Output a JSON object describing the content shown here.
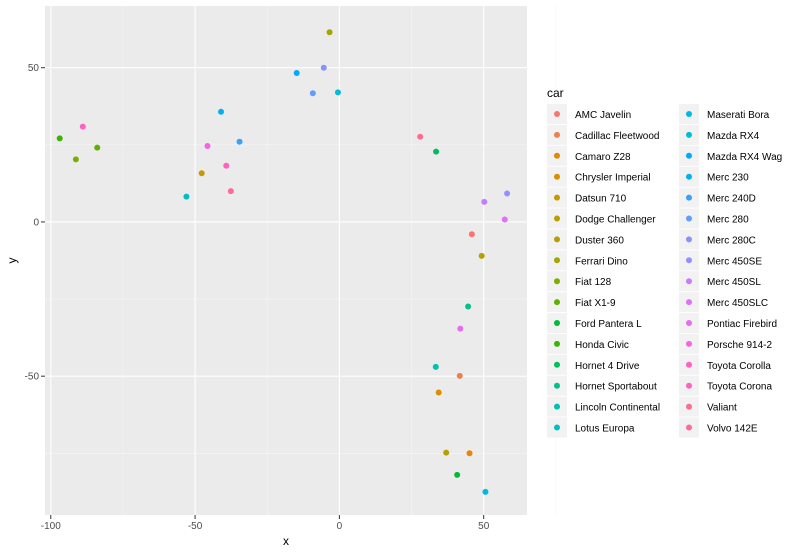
{
  "chart_data": {
    "type": "scatter",
    "title": "",
    "xlabel": "x",
    "ylabel": "y",
    "xlim": [
      -102,
      65
    ],
    "ylim": [
      -95,
      70
    ],
    "xticks": [
      -100,
      -50,
      0,
      50
    ],
    "xtick_labels": [
      "-100",
      "-50",
      "0",
      "50"
    ],
    "yticks": [
      -50,
      0,
      50
    ],
    "ytick_labels": [
      "-50",
      "0",
      "50"
    ],
    "grid": true,
    "legend": {
      "title": "car",
      "placement": "right",
      "columns": 2
    },
    "series": [
      {
        "name": "AMC Javelin",
        "color": "#F8766D",
        "x": 45.9,
        "y": -4.0
      },
      {
        "name": "Cadillac Fleetwood",
        "color": "#F07F4E",
        "x": 41.7,
        "y": -49.9
      },
      {
        "name": "Camaro Z28",
        "color": "#E58700",
        "x": 45.1,
        "y": -75.0
      },
      {
        "name": "Chrysler Imperial",
        "color": "#D89000",
        "x": 34.4,
        "y": -55.3
      },
      {
        "name": "Datsun 710",
        "color": "#C99800",
        "x": -47.7,
        "y": 15.8
      },
      {
        "name": "Dodge Challenger",
        "color": "#B79F00",
        "x": 37.0,
        "y": -74.8
      },
      {
        "name": "Duster 360",
        "color": "#B79F00",
        "x": 49.3,
        "y": -11.0
      },
      {
        "name": "Ferrari Dino",
        "color": "#A3A500",
        "x": -3.4,
        "y": 61.5
      },
      {
        "name": "Fiat 128",
        "color": "#7CAE00",
        "x": -91.3,
        "y": 20.3
      },
      {
        "name": "Fiat X1-9",
        "color": "#5BB300",
        "x": -83.9,
        "y": 24.1
      },
      {
        "name": "Ford Pantera L",
        "color": "#00BA38",
        "x": 40.8,
        "y": -82.0
      },
      {
        "name": "Honda Civic",
        "color": "#39B600",
        "x": -96.9,
        "y": 27.1
      },
      {
        "name": "Hornet 4 Drive",
        "color": "#00BD5C",
        "x": 33.5,
        "y": 22.8
      },
      {
        "name": "Hornet Sportabout",
        "color": "#00C08B",
        "x": 44.6,
        "y": -27.4
      },
      {
        "name": "Lincoln Continental",
        "color": "#00C0AF",
        "x": 33.4,
        "y": -47.0
      },
      {
        "name": "Lotus Europa",
        "color": "#00BFC4",
        "x": -53.0,
        "y": 8.2
      },
      {
        "name": "Maserati Bora",
        "color": "#00B8E7",
        "x": 50.6,
        "y": -87.5
      },
      {
        "name": "Mazda RX4",
        "color": "#00BCD8",
        "x": -0.5,
        "y": 42.0
      },
      {
        "name": "Mazda RX4 Wag",
        "color": "#00A9FF",
        "x": -14.8,
        "y": 48.3
      },
      {
        "name": "Merc 230",
        "color": "#00B0F6",
        "x": -41.0,
        "y": 35.7
      },
      {
        "name": "Merc 240D",
        "color": "#35A2FF",
        "x": -34.6,
        "y": 26.0
      },
      {
        "name": "Merc 280",
        "color": "#619CFF",
        "x": -9.2,
        "y": 41.7
      },
      {
        "name": "Merc 280C",
        "color": "#8494FF",
        "x": -5.4,
        "y": 50.0
      },
      {
        "name": "Merc 450SE",
        "color": "#9590FF",
        "x": 58.1,
        "y": 9.2
      },
      {
        "name": "Merc 450SL",
        "color": "#C77CFF",
        "x": 50.2,
        "y": 6.5
      },
      {
        "name": "Merc 450SLC",
        "color": "#DC71FA",
        "x": 57.3,
        "y": 0.8
      },
      {
        "name": "Pontiac Firebird",
        "color": "#E76BF3",
        "x": 41.9,
        "y": -34.6
      },
      {
        "name": "Porsche 914-2",
        "color": "#F564E3",
        "x": -45.7,
        "y": 24.6
      },
      {
        "name": "Toyota Corolla",
        "color": "#FF61C3",
        "x": -88.9,
        "y": 30.9
      },
      {
        "name": "Toyota Corona",
        "color": "#FF62BC",
        "x": -39.2,
        "y": 18.2
      },
      {
        "name": "Valiant",
        "color": "#FF6C91",
        "x": 28.0,
        "y": 27.6
      },
      {
        "name": "Volvo 142E",
        "color": "#FF6A98",
        "x": -37.6,
        "y": 10.0
      }
    ]
  }
}
